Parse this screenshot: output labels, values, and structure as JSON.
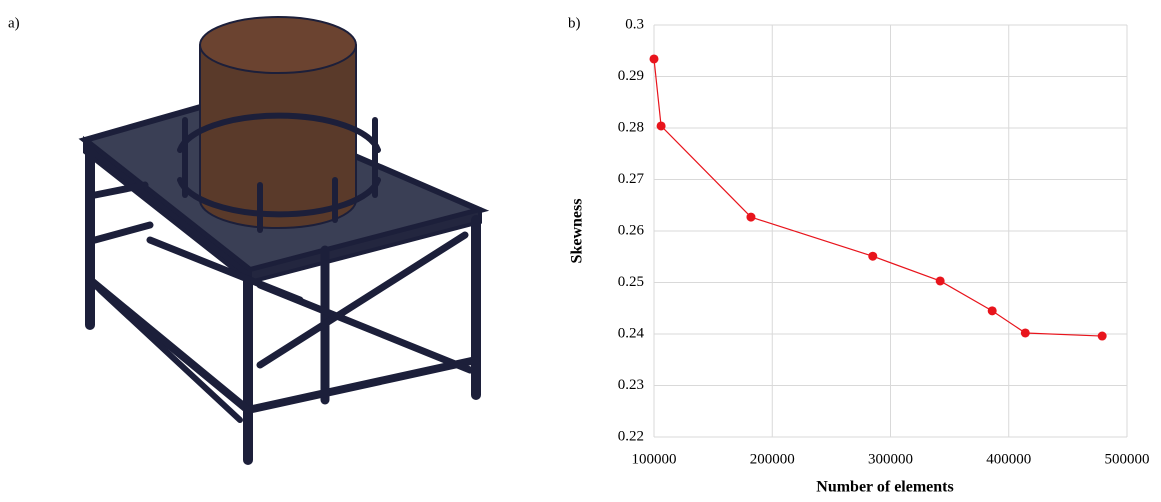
{
  "image_label": "a)",
  "chart_data": {
    "type": "line",
    "panel_label": "b)",
    "x_label": "Number of elements",
    "y_label": "Skewness",
    "x": [
      100000,
      106000,
      182000,
      285000,
      342000,
      386000,
      414000,
      479000
    ],
    "values": [
      0.2934,
      0.2804,
      0.2627,
      0.2551,
      0.2503,
      0.2445,
      0.2402,
      0.2396
    ],
    "color": "#e8141c",
    "xlim": [
      100000,
      500000
    ],
    "xticks": [
      100000,
      200000,
      300000,
      400000,
      500000
    ],
    "ylim": [
      0.22,
      0.3
    ],
    "yticks": [
      0.22,
      0.23,
      0.24,
      0.25,
      0.26,
      0.27,
      0.28,
      0.29,
      0.3
    ],
    "grid": true
  }
}
